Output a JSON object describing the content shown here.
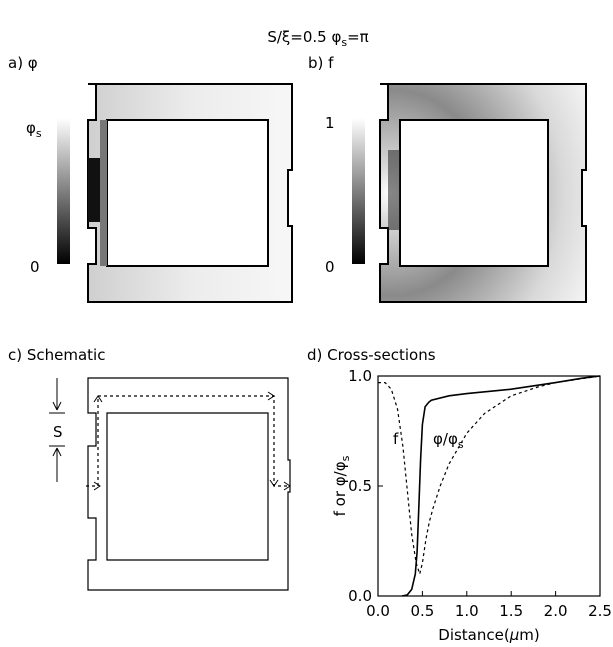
{
  "header": {
    "title": "S/ξ=0.5  φ",
    "title_sub": "s",
    "title_tail": "=π"
  },
  "panels": {
    "a": {
      "label": "a) φ",
      "bar_top": "φ",
      "bar_top_sub": "s",
      "bar_bottom": "0"
    },
    "b": {
      "label": "b) f",
      "bar_top": "1",
      "bar_bottom": "0"
    },
    "c": {
      "label": "c) Schematic",
      "s_label": "S"
    },
    "d": {
      "label": "d) Cross-sections"
    }
  },
  "chart_data": {
    "type": "line",
    "xlabel_main": "Distance(",
    "xlabel_mu": "μ",
    "xlabel_tail": "m)",
    "ylabel_main": "f or φ/φ",
    "ylabel_sub": "s",
    "xlim": [
      0.0,
      2.5
    ],
    "ylim": [
      0.0,
      1.0
    ],
    "x_ticks": [
      "0.0",
      "0.5",
      "1.0",
      "1.5",
      "2.0",
      "2.5"
    ],
    "y_ticks": [
      "0.0",
      "0.5",
      "1.0"
    ],
    "series": [
      {
        "name": "φ/φs",
        "style": "solid",
        "points": [
          [
            0.27,
            0.0
          ],
          [
            0.33,
            0.005
          ],
          [
            0.38,
            0.03
          ],
          [
            0.42,
            0.1
          ],
          [
            0.44,
            0.2
          ],
          [
            0.46,
            0.4
          ],
          [
            0.48,
            0.62
          ],
          [
            0.5,
            0.78
          ],
          [
            0.53,
            0.86
          ],
          [
            0.57,
            0.88
          ],
          [
            0.6,
            0.89
          ],
          [
            0.8,
            0.91
          ],
          [
            1.0,
            0.92
          ],
          [
            1.5,
            0.94
          ],
          [
            2.0,
            0.97
          ],
          [
            2.3,
            0.99
          ],
          [
            2.5,
            1.0
          ]
        ]
      },
      {
        "name": "f",
        "style": "dashed",
        "points": [
          [
            0.0,
            0.97
          ],
          [
            0.08,
            0.97
          ],
          [
            0.15,
            0.94
          ],
          [
            0.22,
            0.85
          ],
          [
            0.28,
            0.68
          ],
          [
            0.33,
            0.48
          ],
          [
            0.38,
            0.28
          ],
          [
            0.43,
            0.15
          ],
          [
            0.47,
            0.1
          ],
          [
            0.5,
            0.15
          ],
          [
            0.54,
            0.26
          ],
          [
            0.58,
            0.34
          ],
          [
            0.62,
            0.4
          ],
          [
            0.7,
            0.5
          ],
          [
            0.8,
            0.6
          ],
          [
            1.0,
            0.74
          ],
          [
            1.2,
            0.83
          ],
          [
            1.5,
            0.91
          ],
          [
            1.8,
            0.95
          ],
          [
            2.0,
            0.97
          ],
          [
            2.5,
            1.0
          ]
        ]
      }
    ],
    "annotations": {
      "f_label": "f",
      "phi_label": "φ/φ",
      "phi_label_sub": "s"
    }
  }
}
